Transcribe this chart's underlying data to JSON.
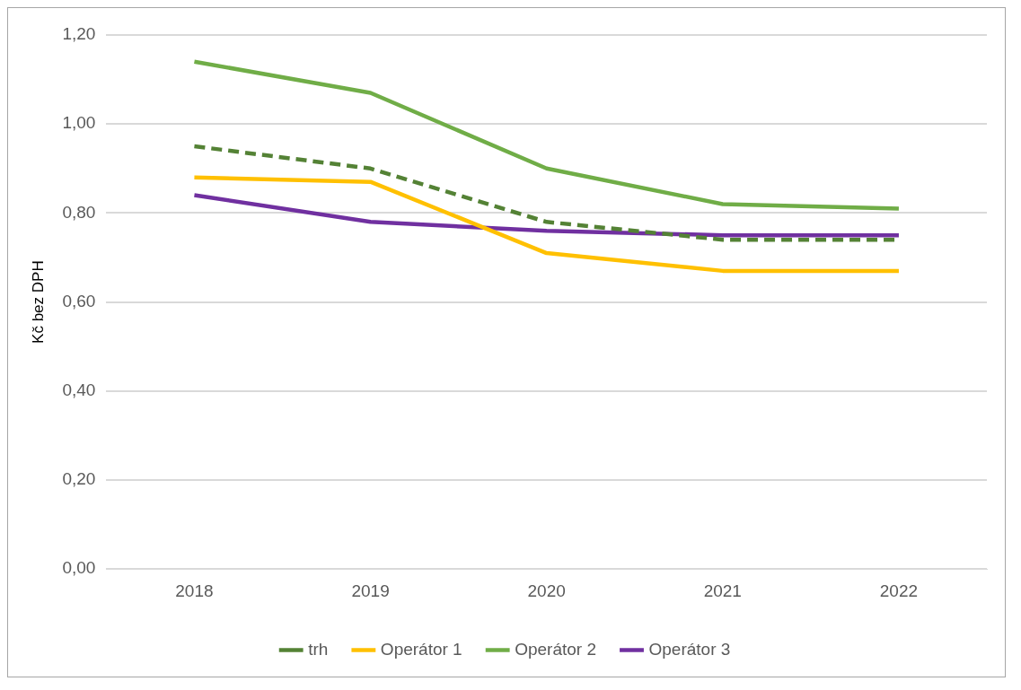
{
  "chart_data": {
    "type": "line",
    "ylabel": "Kč bez DPH",
    "categories": [
      "2018",
      "2019",
      "2020",
      "2021",
      "2022"
    ],
    "series": [
      {
        "name": "trh",
        "color": "#548235",
        "line_style": "dashed",
        "values": [
          0.95,
          0.9,
          0.78,
          0.74,
          0.74
        ]
      },
      {
        "name": "Operátor 1",
        "color": "#ffc000",
        "values": [
          0.88,
          0.87,
          0.71,
          0.67,
          0.67
        ]
      },
      {
        "name": "Operátor 2",
        "color": "#70ad47",
        "values": [
          1.14,
          1.07,
          0.9,
          0.82,
          0.81
        ]
      },
      {
        "name": "Operátor 3",
        "color": "#7030a0",
        "values": [
          0.84,
          0.78,
          0.76,
          0.75,
          0.75
        ]
      }
    ],
    "ylim": [
      0,
      1.2
    ],
    "yticks": [
      {
        "value": 0,
        "label": "0,00"
      },
      {
        "value": 0.2,
        "label": "0,20"
      },
      {
        "value": 0.4,
        "label": "0,40"
      },
      {
        "value": 0.6,
        "label": "0,60"
      },
      {
        "value": 0.8,
        "label": "0,80"
      },
      {
        "value": 1.0,
        "label": "1,00"
      },
      {
        "value": 1.2,
        "label": "1,20"
      }
    ],
    "grid": "y",
    "legend": "bottom",
    "marker": "none",
    "line_style": "solid"
  }
}
